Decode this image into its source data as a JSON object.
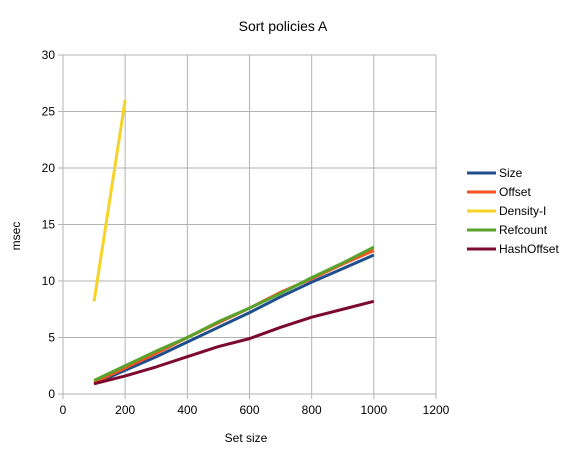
{
  "chart_data": {
    "type": "line",
    "title": "Sort policies A",
    "xlabel": "Set size",
    "ylabel": "msec",
    "xlim": [
      0,
      1200
    ],
    "ylim": [
      0,
      30
    ],
    "xticks": [
      "0",
      "200",
      "400",
      "600",
      "800",
      "1000",
      "1200"
    ],
    "yticks": [
      "0",
      "5",
      "10",
      "15",
      "20",
      "25",
      "30"
    ],
    "grid": true,
    "legend_position": "right",
    "series": [
      {
        "name": "Size",
        "color": "#1f4e8c",
        "x": [
          100,
          200,
          300,
          400,
          500,
          600,
          700,
          800,
          900,
          1000
        ],
        "y": [
          0.9,
          2.1,
          3.3,
          4.6,
          5.9,
          7.2,
          8.6,
          9.9,
          11.1,
          12.3
        ]
      },
      {
        "name": "Offset",
        "color": "#f4511e",
        "x": [
          100,
          200,
          300,
          400,
          500,
          600,
          700,
          800,
          900,
          1000
        ],
        "y": [
          1.0,
          2.3,
          3.6,
          5.0,
          6.3,
          7.6,
          9.0,
          10.2,
          11.5,
          12.7
        ]
      },
      {
        "name": "Density-I",
        "color": "#f5d327",
        "x": [
          100,
          200
        ],
        "y": [
          8.2,
          26.0
        ]
      },
      {
        "name": "Refcount",
        "color": "#58a32c",
        "x": [
          100,
          200,
          300,
          400,
          500,
          600,
          700,
          800,
          900,
          1000
        ],
        "y": [
          1.2,
          2.5,
          3.8,
          5.0,
          6.4,
          7.6,
          8.9,
          10.3,
          11.6,
          13.0
        ]
      },
      {
        "name": "HashOffset",
        "color": "#7b0a2e",
        "x": [
          100,
          200,
          300,
          400,
          500,
          600,
          700,
          800,
          900,
          1000
        ],
        "y": [
          0.9,
          1.6,
          2.4,
          3.3,
          4.2,
          4.9,
          5.9,
          6.8,
          7.5,
          8.2
        ]
      }
    ]
  }
}
